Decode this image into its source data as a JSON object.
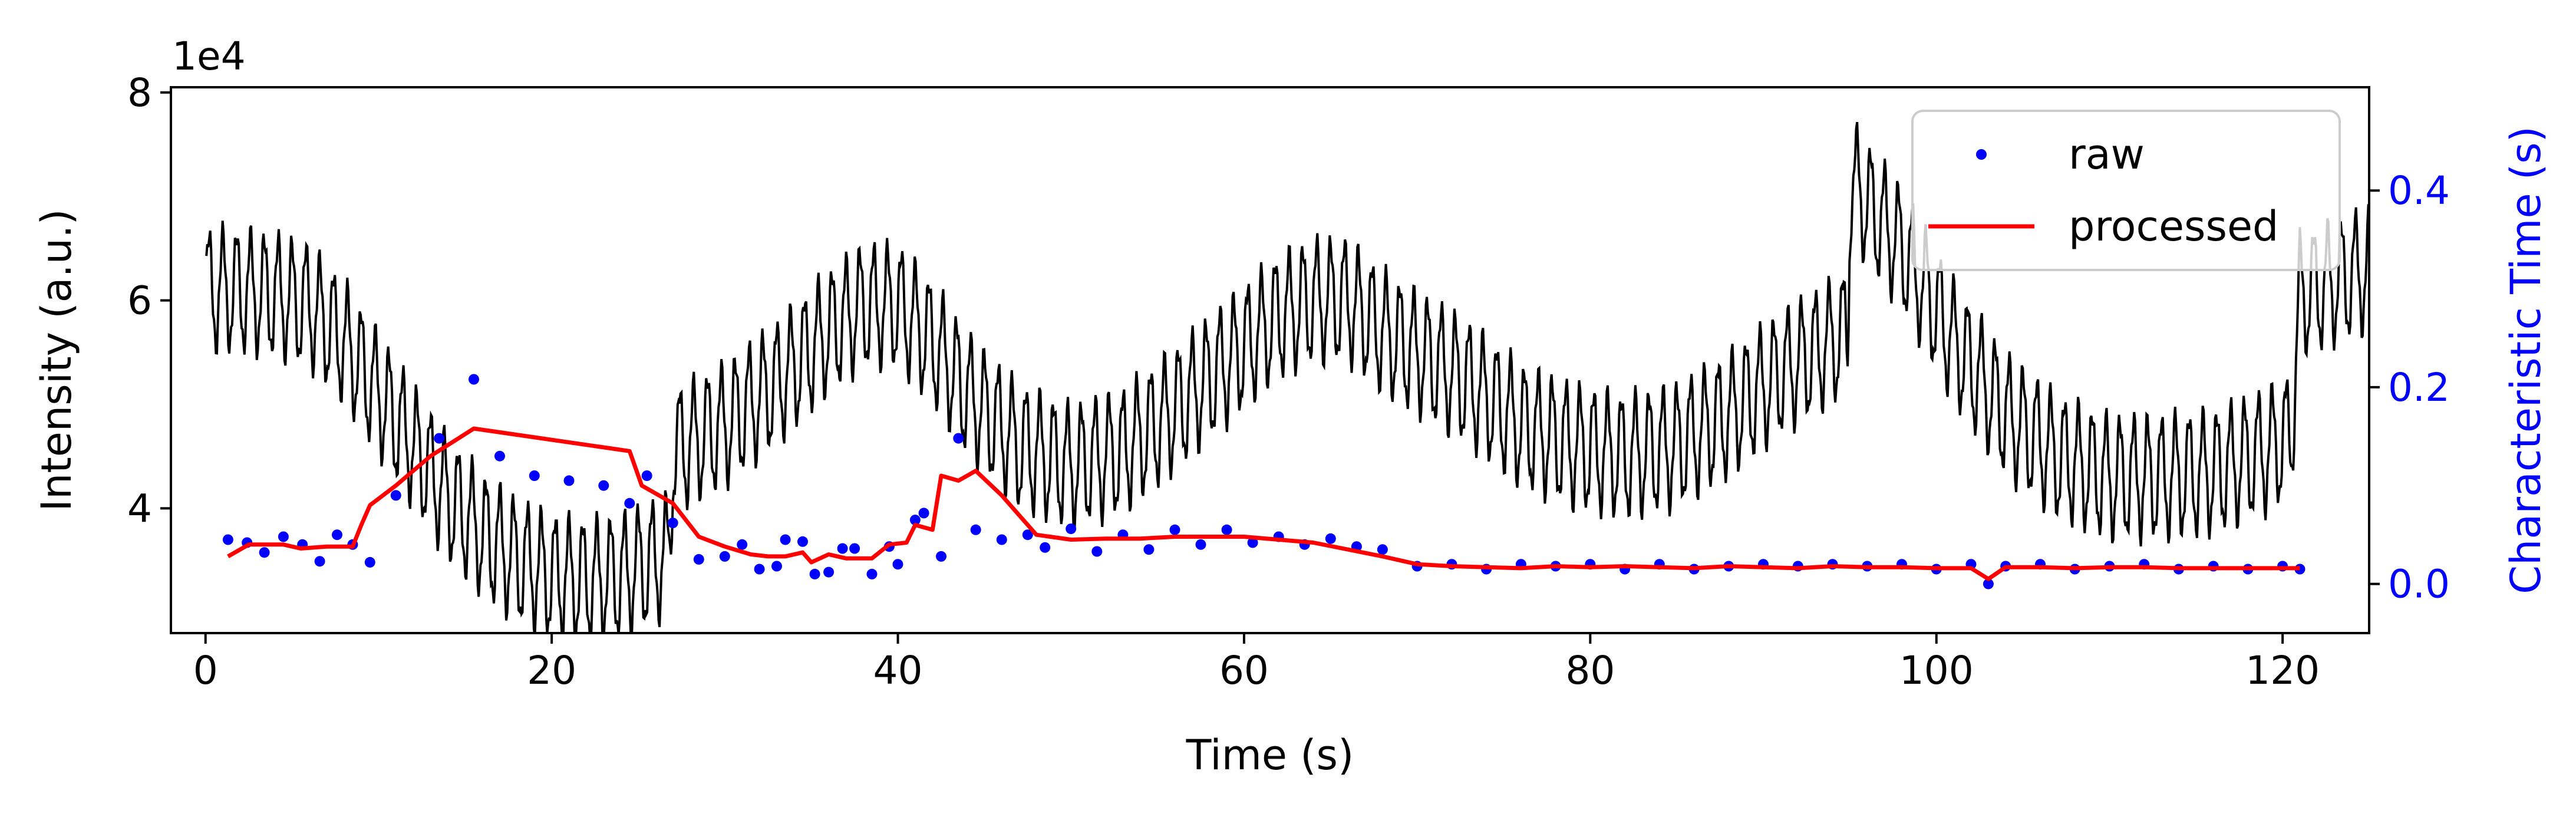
{
  "chart_data": {
    "type": "scatter",
    "xlabel": "Time (s)",
    "ylabel_left": "Intensity (a.u.)",
    "ylabel_right": "Characteristic Time (s)",
    "left_axis_multiplier": "1e4",
    "xlim": [
      -2,
      125
    ],
    "xticks": [
      0,
      20,
      40,
      60,
      80,
      100,
      120
    ],
    "ylim_left": [
      2.8,
      8.05
    ],
    "yticks_left": [
      4,
      6,
      8
    ],
    "ylim_right": [
      -0.05,
      0.505
    ],
    "yticks_right": [
      0.0,
      0.2,
      0.4
    ],
    "grid": false,
    "legend_position": "top-right",
    "legend": [
      "raw",
      "processed"
    ],
    "colors": {
      "intensity": "#000000",
      "raw": "#0000ff",
      "processed": "#ff0000",
      "right_axis": "#0000ff"
    },
    "intensity_trace": {
      "description_points_x": [
        0,
        2,
        4,
        6,
        8,
        10,
        12,
        14,
        16,
        18,
        20,
        22,
        24,
        26.8,
        27,
        30,
        33,
        36,
        38,
        40,
        42,
        44,
        47,
        50,
        53,
        56,
        59,
        62,
        64,
        66,
        68,
        70,
        73,
        76,
        79,
        82,
        85,
        88,
        91,
        94.9,
        95,
        98,
        101,
        104,
        107,
        110,
        113,
        116,
        119,
        120.5,
        121,
        125
      ],
      "center_y": [
        6.1,
        6.1,
        6.05,
        5.95,
        5.6,
        5.1,
        4.6,
        4.1,
        3.75,
        3.5,
        3.35,
        3.3,
        3.35,
        3.55,
        4.55,
        4.8,
        5.2,
        5.7,
        5.95,
        5.95,
        5.6,
        5.1,
        4.6,
        4.4,
        4.55,
        4.95,
        5.4,
        5.85,
        6.0,
        6.0,
        5.7,
        5.5,
        5.2,
        4.8,
        4.6,
        4.5,
        4.6,
        4.9,
        5.3,
        5.7,
        7.15,
        6.5,
        5.6,
        4.9,
        4.5,
        4.3,
        4.3,
        4.35,
        4.55,
        4.7,
        6.05,
        6.3
      ],
      "band_halfwidth": 0.55
    },
    "raw_series": {
      "name": "raw",
      "x": [
        1.3,
        2.4,
        3.4,
        4.5,
        5.6,
        6.6,
        7.6,
        8.5,
        9.5,
        11.0,
        13.5,
        15.5,
        17.0,
        19.0,
        21.0,
        23.0,
        24.5,
        25.5,
        27.0,
        28.5,
        30.0,
        31.0,
        32.0,
        33.0,
        33.5,
        34.5,
        35.2,
        36.0,
        36.8,
        37.5,
        38.5,
        39.5,
        40.0,
        41.0,
        41.5,
        42.5,
        43.5,
        44.5,
        46.0,
        47.5,
        48.5,
        50.0,
        51.5,
        53.0,
        54.5,
        56.0,
        57.5,
        59.0,
        60.5,
        62.0,
        63.5,
        65.0,
        66.5,
        68.0,
        70.0,
        72.0,
        74.0,
        76.0,
        78.0,
        80.0,
        82.0,
        84.0,
        86.0,
        88.0,
        90.0,
        92.0,
        94.0,
        96.0,
        98.0,
        100.0,
        102.0,
        103.0,
        104.0,
        106.0,
        108.0,
        110.0,
        112.0,
        114.0,
        116.0,
        118.0,
        120.0,
        121.0
      ],
      "y": [
        0.045,
        0.042,
        0.032,
        0.048,
        0.04,
        0.023,
        0.05,
        0.04,
        0.022,
        0.09,
        0.148,
        0.208,
        0.13,
        0.11,
        0.105,
        0.1,
        0.082,
        0.11,
        0.062,
        0.025,
        0.028,
        0.04,
        0.015,
        0.018,
        0.045,
        0.043,
        0.01,
        0.012,
        0.036,
        0.036,
        0.01,
        0.038,
        0.02,
        0.065,
        0.072,
        0.028,
        0.148,
        0.055,
        0.045,
        0.05,
        0.037,
        0.056,
        0.033,
        0.05,
        0.035,
        0.055,
        0.04,
        0.055,
        0.042,
        0.048,
        0.04,
        0.046,
        0.038,
        0.035,
        0.018,
        0.02,
        0.015,
        0.02,
        0.018,
        0.02,
        0.015,
        0.02,
        0.015,
        0.018,
        0.02,
        0.018,
        0.02,
        0.018,
        0.02,
        0.015,
        0.02,
        0.0,
        0.018,
        0.02,
        0.015,
        0.018,
        0.02,
        0.015,
        0.018,
        0.015,
        0.018,
        0.015
      ]
    },
    "processed_series": {
      "name": "processed",
      "x": [
        1.3,
        2.5,
        4.5,
        5.5,
        7.0,
        8.5,
        9.0,
        9.5,
        11.0,
        13.0,
        15.5,
        24.5,
        25.2,
        27.0,
        28.5,
        30.0,
        31.5,
        32.5,
        33.5,
        34.5,
        35.0,
        36.0,
        37.0,
        38.5,
        39.5,
        40.5,
        41.0,
        42.0,
        42.5,
        43.5,
        44.5,
        46.0,
        47.0,
        48.0,
        50.0,
        52.0,
        54.0,
        56.0,
        58.0,
        60.0,
        62.0,
        64.0,
        66.0,
        68.0,
        70.0,
        72.0,
        74.0,
        76.0,
        78.0,
        80.0,
        82.0,
        84.0,
        86.0,
        88.0,
        90.0,
        92.0,
        94.0,
        96.0,
        98.0,
        100.0,
        102.0,
        103.0,
        104.0,
        106.0,
        108.0,
        110.0,
        112.0,
        114.0,
        116.0,
        118.0,
        120.0,
        121.0
      ],
      "y": [
        0.028,
        0.04,
        0.04,
        0.036,
        0.038,
        0.038,
        0.06,
        0.08,
        0.1,
        0.13,
        0.158,
        0.135,
        0.1,
        0.082,
        0.048,
        0.038,
        0.03,
        0.028,
        0.028,
        0.032,
        0.022,
        0.03,
        0.026,
        0.026,
        0.04,
        0.042,
        0.06,
        0.055,
        0.11,
        0.105,
        0.115,
        0.09,
        0.07,
        0.05,
        0.045,
        0.046,
        0.046,
        0.048,
        0.048,
        0.048,
        0.045,
        0.042,
        0.035,
        0.028,
        0.02,
        0.018,
        0.017,
        0.016,
        0.018,
        0.017,
        0.018,
        0.017,
        0.016,
        0.018,
        0.017,
        0.016,
        0.018,
        0.017,
        0.017,
        0.016,
        0.016,
        0.005,
        0.017,
        0.017,
        0.016,
        0.017,
        0.017,
        0.016,
        0.016,
        0.016,
        0.016,
        0.016
      ]
    }
  }
}
